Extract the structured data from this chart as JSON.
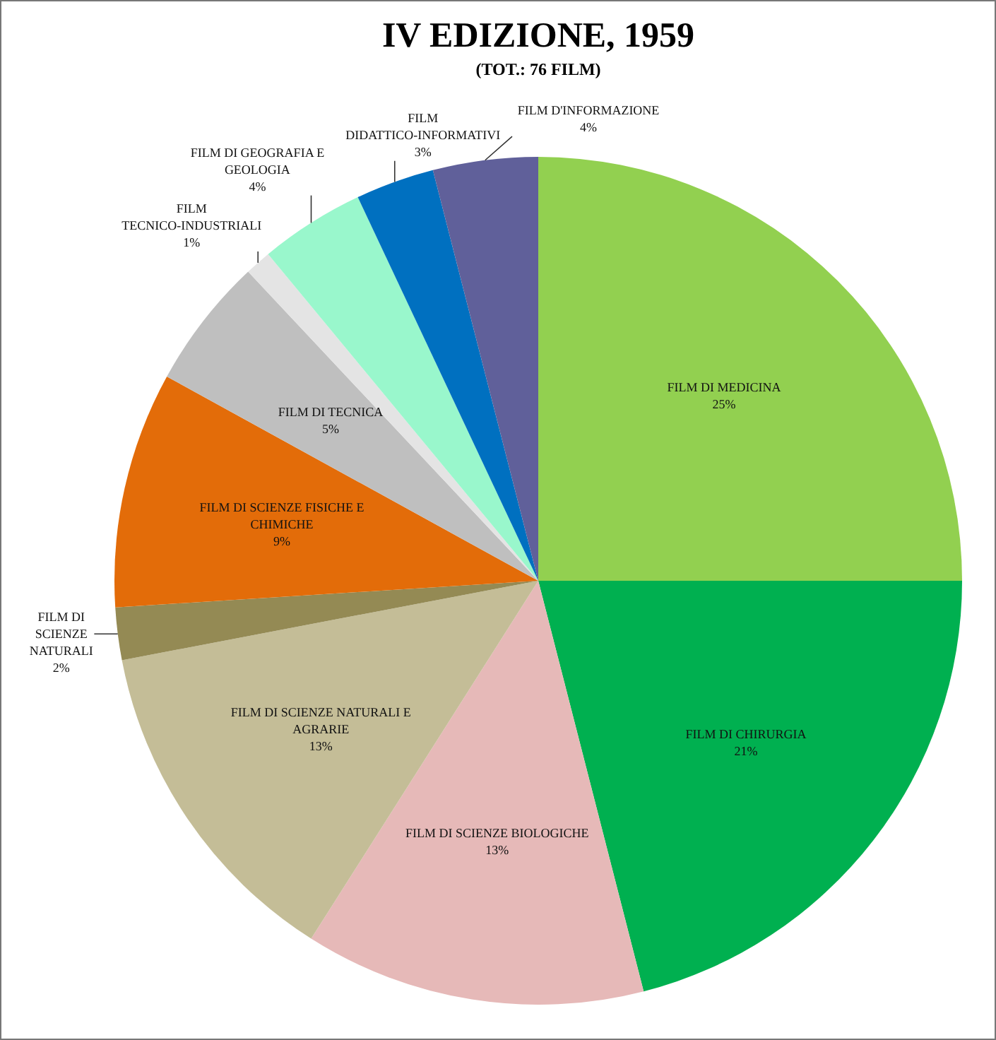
{
  "chart_data": {
    "type": "pie",
    "title": "IV EDIZIONE, 1959",
    "subtitle": "(TOT.: 76 FILM)",
    "categories": [
      "FILM DI MEDICINA",
      "FILM DI CHIRURGIA",
      "FILM DI SCIENZE BIOLOGICHE",
      "FILM DI SCIENZE NATURALI E AGRARIE",
      "FILM DI SCIENZE NATURALI",
      "FILM DI SCIENZE FISICHE E CHIMICHE",
      "FILM DI TECNICA",
      "FILM TECNICO-INDUSTRIALI",
      "FILM DI GEOGRAFIA E GEOLOGIA",
      "FILM DIDATTICO-INFORMATIVI",
      "FILM D'INFORMAZIONE"
    ],
    "values": [
      25,
      21,
      13,
      13,
      2,
      9,
      5,
      1,
      4,
      3,
      4
    ],
    "value_labels": [
      "25%",
      "21%",
      "13%",
      "13%",
      "2%",
      "9%",
      "5%",
      "1%",
      "4%",
      "3%",
      "4%"
    ],
    "colors": [
      "#92d050",
      "#00b050",
      "#e6b9b8",
      "#c4bd97",
      "#948a54",
      "#e36c09",
      "#bfbfbf",
      "#e4e4e4",
      "#99f7cc",
      "#0070c0",
      "#60609a"
    ]
  }
}
